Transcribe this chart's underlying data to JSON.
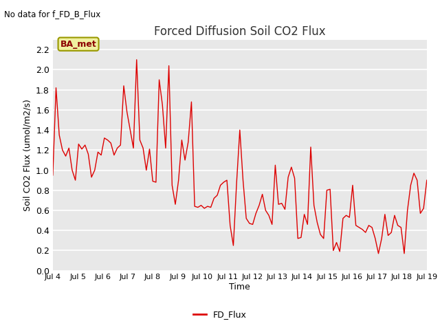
{
  "title": "Forced Diffusion Soil CO2 Flux",
  "no_data_text": "No data for f_FD_B_Flux",
  "ylabel": "Soil CO2 Flux (umol/m2/s)",
  "xlabel": "Time",
  "legend_label": "FD_Flux",
  "box_label": "BA_met",
  "line_color": "#DD0000",
  "background_color": "#E8E8E8",
  "fig_background": "#FFFFFF",
  "ylim": [
    0.0,
    2.3
  ],
  "yticks": [
    0.0,
    0.2,
    0.4,
    0.6,
    0.8,
    1.0,
    1.2,
    1.4,
    1.6,
    1.8,
    2.0,
    2.2
  ],
  "xtick_labels": [
    "Jul 4",
    "Jul 5",
    "Jul 6",
    "Jul 7",
    "Jul 8",
    "Jul 9",
    "Jul 10",
    "Jul 11",
    "Jul 12",
    "Jul 13",
    "Jul 14",
    "Jul 15",
    "Jul 16",
    "Jul 17",
    "Jul 18",
    "Jul 19"
  ],
  "y_values": [
    0.95,
    1.82,
    1.35,
    1.2,
    1.14,
    1.22,
    1.0,
    0.9,
    1.26,
    1.21,
    1.25,
    1.16,
    0.93,
    1.0,
    1.18,
    1.15,
    1.32,
    1.3,
    1.27,
    1.15,
    1.22,
    1.25,
    1.84,
    1.58,
    1.4,
    1.22,
    2.1,
    1.3,
    1.22,
    1.0,
    1.21,
    0.89,
    0.88,
    1.9,
    1.65,
    1.22,
    2.04,
    0.85,
    0.66,
    0.9,
    1.3,
    1.1,
    1.28,
    1.68,
    0.64,
    0.63,
    0.65,
    0.62,
    0.64,
    0.63,
    0.72,
    0.75,
    0.85,
    0.88,
    0.9,
    0.45,
    0.25,
    0.87,
    1.4,
    0.9,
    0.52,
    0.47,
    0.46,
    0.57,
    0.65,
    0.76,
    0.6,
    0.55,
    0.46,
    1.05,
    0.66,
    0.67,
    0.61,
    0.93,
    1.03,
    0.92,
    0.32,
    0.33,
    0.56,
    0.46,
    1.23,
    0.65,
    0.48,
    0.36,
    0.32,
    0.8,
    0.81,
    0.2,
    0.28,
    0.19,
    0.52,
    0.55,
    0.53,
    0.85,
    0.45,
    0.43,
    0.41,
    0.38,
    0.45,
    0.43,
    0.32,
    0.17,
    0.32,
    0.56,
    0.35,
    0.38,
    0.55,
    0.45,
    0.43,
    0.17,
    0.6,
    0.85,
    0.97,
    0.9,
    0.57,
    0.62,
    0.9
  ]
}
